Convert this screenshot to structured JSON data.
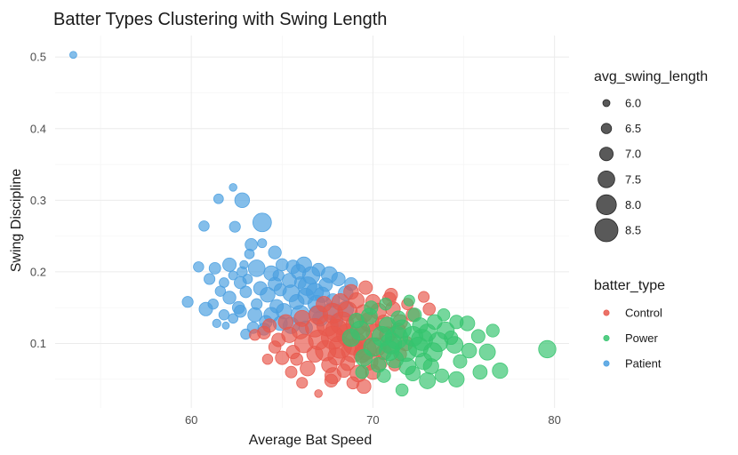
{
  "chart_data": {
    "type": "scatter",
    "title": "Batter Types Clustering with Swing Length",
    "xlabel": "Average Bat Speed",
    "ylabel": "Swing Discipline",
    "xlim": [
      52.5,
      80.8
    ],
    "ylim": [
      0.01,
      0.53
    ],
    "x_ticks": [
      60,
      70,
      80
    ],
    "y_ticks": [
      0.1,
      0.2,
      0.3,
      0.4,
      0.5
    ],
    "x_tick_labels": [
      "60",
      "70",
      "80"
    ],
    "y_tick_labels": [
      "0.1",
      "0.2",
      "0.3",
      "0.4",
      "0.5"
    ],
    "grid": true,
    "legend_placement": "right",
    "size_legend": {
      "title": "avg_swing_length",
      "values": [
        6.0,
        6.5,
        7.0,
        7.5,
        8.0,
        8.5
      ],
      "labels": [
        "6.0",
        "6.5",
        "7.0",
        "7.5",
        "8.0",
        "8.5"
      ]
    },
    "color_legend": {
      "title": "batter_type",
      "entries": [
        {
          "label": "Control",
          "color": "#e8584c"
        },
        {
          "label": "Power",
          "color": "#35c46e"
        },
        {
          "label": "Patient",
          "color": "#4a9fe0"
        }
      ]
    },
    "series": [
      {
        "name": "Patient",
        "color": "#4a9fe0",
        "points": [
          [
            53.5,
            0.503,
            6.0
          ],
          [
            61.5,
            0.302,
            6.4
          ],
          [
            62.3,
            0.318,
            6.1
          ],
          [
            62.8,
            0.3,
            7.2
          ],
          [
            63.9,
            0.269,
            7.8
          ],
          [
            60.7,
            0.264,
            6.5
          ],
          [
            62.4,
            0.263,
            6.6
          ],
          [
            63.3,
            0.238,
            6.8
          ],
          [
            63.9,
            0.24,
            6.3
          ],
          [
            64.6,
            0.227,
            6.9
          ],
          [
            63.2,
            0.225,
            6.4
          ],
          [
            62.9,
            0.21,
            6.2
          ],
          [
            61.3,
            0.205,
            6.7
          ],
          [
            62.1,
            0.21,
            7.0
          ],
          [
            62.8,
            0.2,
            6.5
          ],
          [
            63.6,
            0.205,
            7.5
          ],
          [
            64.4,
            0.198,
            7.2
          ],
          [
            65.0,
            0.21,
            6.8
          ],
          [
            64.8,
            0.195,
            6.6
          ],
          [
            65.6,
            0.207,
            7.0
          ],
          [
            66.2,
            0.21,
            7.3
          ],
          [
            66.6,
            0.195,
            7.6
          ],
          [
            67.0,
            0.203,
            6.9
          ],
          [
            67.6,
            0.196,
            7.4
          ],
          [
            68.1,
            0.19,
            7.0
          ],
          [
            66.0,
            0.185,
            6.7
          ],
          [
            65.4,
            0.188,
            7.1
          ],
          [
            66.4,
            0.18,
            7.8
          ],
          [
            62.3,
            0.195,
            6.3
          ],
          [
            61.8,
            0.185,
            6.4
          ],
          [
            62.7,
            0.185,
            6.8
          ],
          [
            61.6,
            0.173,
            6.5
          ],
          [
            62.1,
            0.164,
            6.9
          ],
          [
            63.0,
            0.172,
            6.7
          ],
          [
            63.8,
            0.177,
            7.0
          ],
          [
            64.2,
            0.168,
            7.2
          ],
          [
            64.9,
            0.175,
            6.8
          ],
          [
            65.5,
            0.17,
            7.5
          ],
          [
            66.3,
            0.166,
            7.4
          ],
          [
            67.2,
            0.168,
            7.3
          ],
          [
            68.5,
            0.17,
            7.2
          ],
          [
            67.8,
            0.16,
            7.0
          ],
          [
            66.9,
            0.155,
            7.6
          ],
          [
            65.8,
            0.158,
            7.2
          ],
          [
            64.7,
            0.152,
            7.0
          ],
          [
            63.6,
            0.155,
            6.6
          ],
          [
            62.6,
            0.15,
            6.8
          ],
          [
            61.2,
            0.155,
            6.5
          ],
          [
            59.8,
            0.158,
            6.6
          ],
          [
            61.8,
            0.14,
            6.5
          ],
          [
            62.7,
            0.145,
            6.8
          ],
          [
            63.5,
            0.14,
            7.1
          ],
          [
            62.3,
            0.135,
            6.4
          ],
          [
            61.4,
            0.128,
            6.2
          ],
          [
            61.9,
            0.125,
            6.0
          ],
          [
            64.4,
            0.14,
            7.2
          ],
          [
            65.1,
            0.145,
            7.3
          ],
          [
            66.0,
            0.14,
            7.8
          ],
          [
            66.9,
            0.142,
            7.3
          ],
          [
            67.7,
            0.145,
            7.5
          ],
          [
            68.5,
            0.148,
            7.4
          ],
          [
            64.1,
            0.13,
            6.9
          ],
          [
            64.9,
            0.128,
            7.1
          ],
          [
            65.5,
            0.125,
            7.4
          ],
          [
            66.3,
            0.122,
            7.0
          ],
          [
            63.4,
            0.122,
            6.7
          ],
          [
            64.0,
            0.12,
            6.8
          ],
          [
            63.0,
            0.113,
            6.5
          ],
          [
            60.8,
            0.148,
            7.0
          ],
          [
            60.4,
            0.207,
            6.5
          ],
          [
            61.0,
            0.19,
            6.6
          ],
          [
            64.6,
            0.183,
            7.0
          ],
          [
            65.9,
            0.2,
            7.2
          ],
          [
            66.8,
            0.172,
            7.6
          ],
          [
            67.4,
            0.182,
            7.0
          ],
          [
            68.8,
            0.183,
            6.9
          ],
          [
            63.1,
            0.19,
            6.4
          ],
          [
            67.1,
            0.135,
            7.3
          ],
          [
            68.0,
            0.132,
            6.9
          ]
        ]
      },
      {
        "name": "Control",
        "color": "#e8584c",
        "points": [
          [
            67.0,
            0.03,
            6.1
          ],
          [
            68.9,
            0.045,
            6.8
          ],
          [
            69.5,
            0.04,
            7.1
          ],
          [
            67.8,
            0.055,
            7.4
          ],
          [
            68.4,
            0.062,
            7.0
          ],
          [
            69.2,
            0.058,
            7.5
          ],
          [
            66.4,
            0.065,
            7.2
          ],
          [
            67.6,
            0.07,
            7.3
          ],
          [
            68.6,
            0.072,
            7.1
          ],
          [
            69.8,
            0.075,
            7.6
          ],
          [
            70.4,
            0.072,
            7.0
          ],
          [
            71.2,
            0.07,
            6.8
          ],
          [
            65.0,
            0.08,
            7.0
          ],
          [
            65.8,
            0.078,
            6.8
          ],
          [
            66.8,
            0.085,
            7.4
          ],
          [
            67.4,
            0.09,
            8.1
          ],
          [
            68.2,
            0.095,
            8.4
          ],
          [
            68.9,
            0.09,
            8.5
          ],
          [
            69.6,
            0.092,
            8.2
          ],
          [
            70.2,
            0.095,
            7.8
          ],
          [
            71.0,
            0.098,
            7.5
          ],
          [
            71.8,
            0.1,
            7.2
          ],
          [
            66.2,
            0.1,
            7.8
          ],
          [
            67.0,
            0.105,
            8.0
          ],
          [
            67.8,
            0.108,
            8.5
          ],
          [
            68.6,
            0.112,
            8.3
          ],
          [
            69.4,
            0.11,
            8.0
          ],
          [
            70.1,
            0.115,
            7.6
          ],
          [
            70.8,
            0.112,
            7.4
          ],
          [
            71.4,
            0.118,
            7.2
          ],
          [
            64.8,
            0.105,
            7.0
          ],
          [
            65.4,
            0.112,
            7.3
          ],
          [
            66.0,
            0.118,
            7.5
          ],
          [
            66.8,
            0.122,
            7.8
          ],
          [
            67.5,
            0.125,
            8.2
          ],
          [
            68.3,
            0.128,
            8.5
          ],
          [
            69.1,
            0.126,
            8.2
          ],
          [
            69.8,
            0.13,
            7.9
          ],
          [
            70.6,
            0.128,
            7.5
          ],
          [
            71.5,
            0.13,
            7.2
          ],
          [
            64.0,
            0.115,
            6.9
          ],
          [
            64.3,
            0.125,
            7.0
          ],
          [
            65.2,
            0.13,
            7.2
          ],
          [
            66.1,
            0.135,
            7.4
          ],
          [
            67.0,
            0.14,
            7.8
          ],
          [
            67.8,
            0.142,
            8.0
          ],
          [
            68.6,
            0.145,
            7.9
          ],
          [
            69.5,
            0.142,
            7.6
          ],
          [
            70.3,
            0.145,
            7.4
          ],
          [
            71.1,
            0.148,
            7.2
          ],
          [
            72.2,
            0.14,
            7.0
          ],
          [
            67.3,
            0.155,
            7.3
          ],
          [
            68.2,
            0.158,
            7.5
          ],
          [
            69.1,
            0.16,
            7.3
          ],
          [
            70.0,
            0.158,
            7.2
          ],
          [
            70.9,
            0.162,
            7.0
          ],
          [
            68.8,
            0.172,
            7.2
          ],
          [
            69.6,
            0.178,
            7.0
          ],
          [
            71.0,
            0.168,
            6.9
          ],
          [
            72.8,
            0.165,
            6.6
          ],
          [
            73.1,
            0.148,
            6.8
          ],
          [
            71.9,
            0.155,
            6.7
          ],
          [
            63.5,
            0.112,
            6.6
          ],
          [
            64.6,
            0.095,
            6.8
          ],
          [
            65.6,
            0.088,
            7.0
          ],
          [
            68.0,
            0.082,
            7.6
          ],
          [
            69.4,
            0.085,
            7.5
          ],
          [
            70.6,
            0.088,
            7.3
          ],
          [
            64.2,
            0.078,
            6.5
          ],
          [
            65.5,
            0.06,
            6.7
          ],
          [
            66.1,
            0.045,
            6.6
          ],
          [
            67.7,
            0.048,
            6.9
          ],
          [
            70.0,
            0.06,
            7.2
          ],
          [
            71.5,
            0.085,
            6.9
          ],
          [
            68.0,
            0.118,
            8.4
          ],
          [
            69.0,
            0.1,
            8.5
          ]
        ]
      },
      {
        "name": "Power",
        "color": "#35c46e",
        "points": [
          [
            79.6,
            0.092,
            7.6
          ],
          [
            77.0,
            0.062,
            7.3
          ],
          [
            76.3,
            0.088,
            7.4
          ],
          [
            75.8,
            0.11,
            7.0
          ],
          [
            76.6,
            0.118,
            6.9
          ],
          [
            75.2,
            0.128,
            7.2
          ],
          [
            74.6,
            0.13,
            7.0
          ],
          [
            74.0,
            0.118,
            7.6
          ],
          [
            73.6,
            0.102,
            7.9
          ],
          [
            74.5,
            0.098,
            7.5
          ],
          [
            75.3,
            0.09,
            7.2
          ],
          [
            74.8,
            0.075,
            7.0
          ],
          [
            74.6,
            0.05,
            7.3
          ],
          [
            73.8,
            0.055,
            7.0
          ],
          [
            73.0,
            0.048,
            7.4
          ],
          [
            72.2,
            0.058,
            7.2
          ],
          [
            71.6,
            0.035,
            6.8
          ],
          [
            72.8,
            0.075,
            7.5
          ],
          [
            73.3,
            0.088,
            7.8
          ],
          [
            72.5,
            0.095,
            8.0
          ],
          [
            71.8,
            0.09,
            8.3
          ],
          [
            71.0,
            0.1,
            8.2
          ],
          [
            72.2,
            0.11,
            8.0
          ],
          [
            73.0,
            0.115,
            7.6
          ],
          [
            72.6,
            0.125,
            7.3
          ],
          [
            71.6,
            0.12,
            7.8
          ],
          [
            70.8,
            0.125,
            7.5
          ],
          [
            71.4,
            0.135,
            7.2
          ],
          [
            72.3,
            0.14,
            7.0
          ],
          [
            73.4,
            0.13,
            7.2
          ],
          [
            70.5,
            0.11,
            8.0
          ],
          [
            70.0,
            0.095,
            7.8
          ],
          [
            69.5,
            0.08,
            7.5
          ],
          [
            70.3,
            0.07,
            7.2
          ],
          [
            71.2,
            0.078,
            7.6
          ],
          [
            70.6,
            0.055,
            7.0
          ],
          [
            69.4,
            0.06,
            6.9
          ],
          [
            69.9,
            0.15,
            7.0
          ],
          [
            70.7,
            0.155,
            6.8
          ],
          [
            72.0,
            0.16,
            6.6
          ],
          [
            69.1,
            0.132,
            7.2
          ],
          [
            69.8,
            0.138,
            7.4
          ],
          [
            68.8,
            0.108,
            7.6
          ],
          [
            69.3,
            0.118,
            7.9
          ],
          [
            73.9,
            0.14,
            6.8
          ],
          [
            74.3,
            0.108,
            7.0
          ],
          [
            75.9,
            0.06,
            7.1
          ],
          [
            73.2,
            0.068,
            7.3
          ],
          [
            71.9,
            0.068,
            7.5
          ],
          [
            72.7,
            0.105,
            8.2
          ],
          [
            71.3,
            0.108,
            8.4
          ],
          [
            70.9,
            0.09,
            8.0
          ]
        ]
      }
    ]
  }
}
